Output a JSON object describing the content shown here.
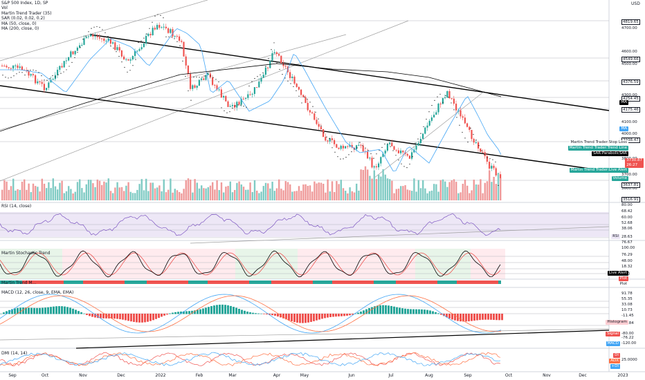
{
  "header": {
    "symbol": "S&P 500 Index, 1D, SP",
    "currency": "USD"
  },
  "legends": {
    "main": [
      "Vol",
      "Martin Trend Trader (35)",
      "SAR (0.02, 0.02, 0.2)",
      "MA (50, close, 0)",
      "MA (200, close, 0)"
    ],
    "rsi": "RSI (14, close)",
    "stoch": "Martin Stochastic Trend",
    "mtm": "Martin Trend M...",
    "macd": "MACD (12, 26, close, 9, EMA, EMA)",
    "dmi": "DMI (14, 14)"
  },
  "price_axis": [
    "4819.65",
    "4700.00",
    "4600.00",
    "4549.66",
    "4500.00",
    "4376.59",
    "4300.00",
    "4254.45",
    "4175.46",
    "4100.00",
    "4000.00",
    "3938.47",
    "3800.00",
    "3700.00",
    "3600.00",
    "3637.81",
    "3516.91"
  ],
  "rsi_axis": [
    "80.00",
    "68.42",
    "60.00",
    "52.68",
    "38.06",
    "28.63"
  ],
  "stoch_axis": [
    "76.67",
    "100.00",
    "76.29",
    "48.00",
    "18.32",
    "0.00"
  ],
  "macd_axis": [
    "91.78",
    "55.35",
    "33.08",
    "10.73",
    "-11.45",
    "-43.84",
    "-80.00",
    "-76.22",
    "-120.00"
  ],
  "dmi_axis": [
    "25.0000"
  ],
  "tags": {
    "ma": "MA",
    "ma2": "MA",
    "stop_loss": "Martin Trend Trader:Stop Loss",
    "trend_line": "Martin Trend Trader:Trend Line",
    "sar": "SAR:ParabolicSAR",
    "last_price": "3730.87",
    "countdown": "26:27",
    "live_alert": "Martin Trend Trader:Live Alert",
    "volume": "Volume",
    "rsi": "RSI",
    "live_alert2": "Live Alert",
    "plot_a": "Plot",
    "plot_b": "Plot",
    "histogram": "Histogram",
    "signal": "Signal",
    "macd": "MACD",
    "di_plus": "DI",
    "adx": "ADX",
    "di_minus": "+DI"
  },
  "time_axis": [
    "Sep",
    "Oct",
    "Nov",
    "Dec",
    "2022",
    "Feb",
    "Mar",
    "Apr",
    "May",
    "Jun",
    "Jul",
    "Aug",
    "Sep",
    "Oct",
    "Nov",
    "Dec",
    "2023"
  ],
  "colors": {
    "up": "#26a69a",
    "down": "#ef5350",
    "ma50": "#42a5f5",
    "ma200": "#000000",
    "rsi_band": "#ede7f6",
    "stoch_up": "#e8f5e9",
    "stoch_down": "#ffebee"
  }
}
